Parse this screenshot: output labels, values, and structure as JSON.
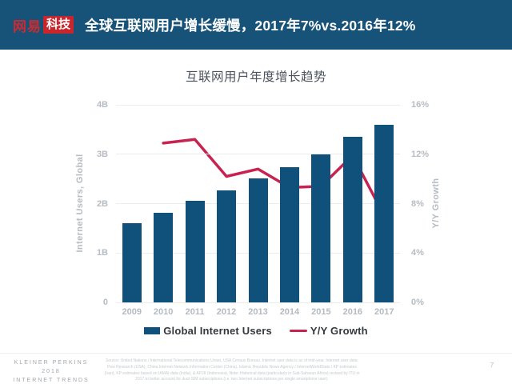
{
  "header": {
    "logo": {
      "brand": "网易",
      "suffix": "科技"
    },
    "title": "全球互联网用户增长缓慢，2017年7%vs.2016年12%"
  },
  "chart_data": {
    "type": "bar+line",
    "title": "互联网用户年度增长趋势",
    "categories": [
      "2009",
      "2010",
      "2011",
      "2012",
      "2013",
      "2014",
      "2015",
      "2016",
      "2017"
    ],
    "series": [
      {
        "name": "Global Internet Users",
        "type": "bar",
        "axis": "left",
        "unit": "billions",
        "color": "#10517b",
        "values": [
          1.61,
          1.82,
          2.06,
          2.27,
          2.51,
          2.74,
          3.0,
          3.36,
          3.6
        ]
      },
      {
        "name": "Y/Y Growth",
        "type": "line",
        "axis": "right",
        "unit": "percent",
        "color": "#c72351",
        "values": [
          null,
          12.9,
          13.2,
          10.2,
          10.8,
          9.3,
          9.4,
          11.9,
          7.0
        ]
      }
    ],
    "left_ylabel": "Internet Users, Global",
    "right_ylabel": "Y/Y Growth",
    "left_ylim": [
      0,
      4
    ],
    "right_ylim": [
      0,
      16
    ],
    "left_ticks": [
      "0",
      "1B",
      "2B",
      "3B",
      "4B"
    ],
    "right_ticks": [
      "0%",
      "4%",
      "8%",
      "12%",
      "16%"
    ],
    "grid": true,
    "legend_position": "bottom"
  },
  "footer": {
    "brand_lines": [
      "KLEINER PERKINS",
      "2018",
      "INTERNET TRENDS"
    ],
    "source": "Source: United Nations / International Telecommunications Union, USA Census Bureau. Internet user data is as of mid-year. Internet user data: Pew Research (USA), China Internet Network Information Center (China), Islamic Republic News Agency / InternetWorldStats / KP estimates (Iran), KP estimates based on IAMAI data (India), & APJII (Indonesia). Note: Historical data (particularly in Sub-Saharan Africa) revised by ITU in 2017 to better account for dual-SIM subscriptions (i.e. two Internet subscriptions per single smartphone user).",
    "page_number": "7"
  },
  "colors": {
    "banner_bg": "#175379",
    "logo_red": "#c9252d",
    "bar_blue": "#10517b",
    "line_crimson": "#c72351",
    "grid_gray": "#eaecee"
  }
}
